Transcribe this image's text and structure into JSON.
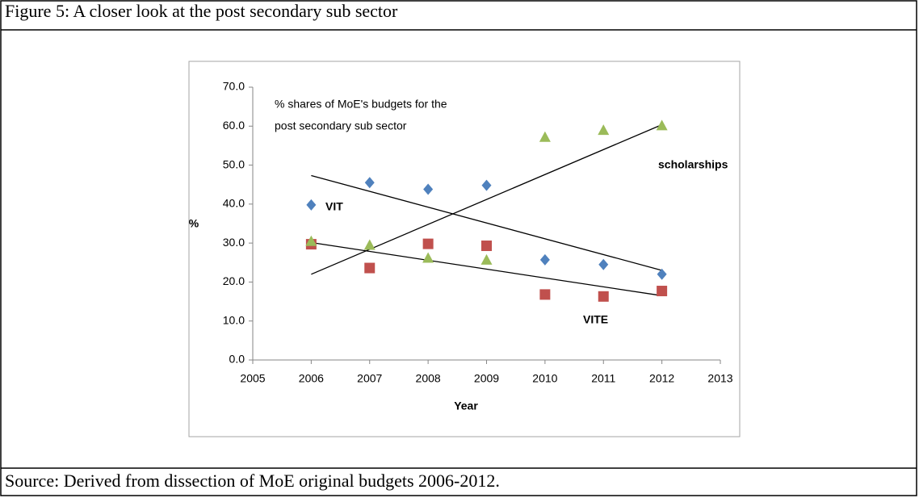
{
  "caption": "Figure 5: A closer look at the post secondary sub sector",
  "source": "Source: Derived from dissection of MoE original budgets 2006-2012.",
  "chart_data": {
    "type": "scatter",
    "annotation": [
      "% shares of MoE's budgets for the",
      "post secondary sub sector"
    ],
    "xlabel": "Year",
    "ylabel": "%",
    "x": [
      2006,
      2007,
      2008,
      2009,
      2010,
      2011,
      2012
    ],
    "series": [
      {
        "name": "VIT",
        "color": "#4f81bd",
        "marker": "diamond",
        "values": [
          39.8,
          45.5,
          43.8,
          44.8,
          25.7,
          24.5,
          22.0
        ]
      },
      {
        "name": "VITE",
        "color": "#c0504d",
        "marker": "square",
        "values": [
          29.7,
          23.6,
          29.8,
          29.3,
          16.8,
          16.3,
          17.7
        ]
      },
      {
        "name": "scholarships",
        "color": "#9bbb59",
        "marker": "triangle",
        "values": [
          30.5,
          29.5,
          26.2,
          25.7,
          57.2,
          59.0,
          60.2
        ]
      }
    ],
    "trendline": true,
    "xlim": [
      2005,
      2013
    ],
    "xticks": [
      2005,
      2006,
      2007,
      2008,
      2009,
      2010,
      2011,
      2012,
      2013
    ],
    "ylim": [
      0,
      70
    ],
    "yticks": [
      {
        "value": 0,
        "label": "0.0"
      },
      {
        "value": 10,
        "label": "10.0"
      },
      {
        "value": 20,
        "label": "20.0"
      },
      {
        "value": 30,
        "label": "30.0"
      },
      {
        "value": 40,
        "label": "40.0"
      },
      {
        "value": 50,
        "label": "50.0"
      },
      {
        "value": 60,
        "label": "60.0"
      },
      {
        "value": 70,
        "label": "70.0"
      }
    ]
  }
}
